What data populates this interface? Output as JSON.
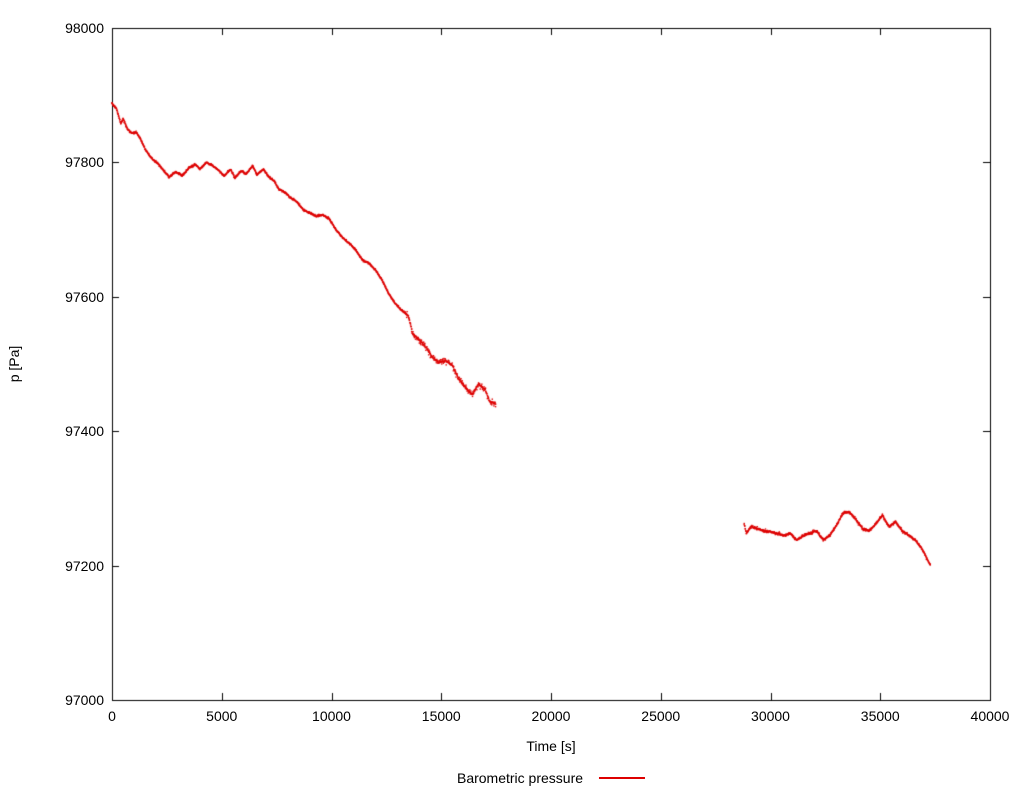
{
  "chart": {
    "background": "#ffffff",
    "axis_color": "#000000",
    "series_color": "#dd0000"
  },
  "chart_data": {
    "type": "scatter",
    "title": "",
    "xlabel": "Time [s]",
    "ylabel": "p [Pa]",
    "xlim": [
      0,
      40000
    ],
    "ylim": [
      97000,
      98000
    ],
    "xticks": [
      0,
      5000,
      10000,
      15000,
      20000,
      25000,
      30000,
      35000,
      40000
    ],
    "yticks": [
      97000,
      97200,
      97400,
      97600,
      97800,
      98000
    ],
    "grid": false,
    "legend_position": "bottom-center",
    "series": [
      {
        "name": "Barometric pressure",
        "color": "#dd0000",
        "segments": [
          [
            [
              0,
              97888
            ],
            [
              200,
              97880
            ],
            [
              400,
              97858
            ],
            [
              500,
              97865
            ],
            [
              700,
              97850
            ],
            [
              900,
              97843
            ],
            [
              1100,
              97845
            ],
            [
              1300,
              97835
            ],
            [
              1500,
              97820
            ],
            [
              1800,
              97806
            ],
            [
              2100,
              97798
            ],
            [
              2400,
              97786
            ],
            [
              2600,
              97778
            ],
            [
              2900,
              97786
            ],
            [
              3200,
              97780
            ],
            [
              3500,
              97792
            ],
            [
              3800,
              97797
            ],
            [
              4000,
              97790
            ],
            [
              4300,
              97800
            ],
            [
              4600,
              97795
            ],
            [
              4900,
              97787
            ],
            [
              5100,
              97780
            ],
            [
              5400,
              97790
            ],
            [
              5600,
              97777
            ],
            [
              5900,
              97788
            ],
            [
              6100,
              97782
            ],
            [
              6400,
              97795
            ],
            [
              6600,
              97782
            ],
            [
              6900,
              97790
            ],
            [
              7100,
              97780
            ],
            [
              7400,
              97772
            ],
            [
              7600,
              97760
            ],
            [
              7900,
              97755
            ],
            [
              8100,
              97748
            ],
            [
              8400,
              97742
            ],
            [
              8700,
              97730
            ],
            [
              9000,
              97725
            ],
            [
              9300,
              97720
            ],
            [
              9600,
              97722
            ],
            [
              9900,
              97716
            ],
            [
              10200,
              97700
            ],
            [
              10500,
              97688
            ],
            [
              10800,
              97680
            ],
            [
              11100,
              97670
            ],
            [
              11400,
              97655
            ],
            [
              11700,
              97650
            ],
            [
              12000,
              97640
            ],
            [
              12300,
              97625
            ],
            [
              12600,
              97605
            ],
            [
              12900,
              97590
            ],
            [
              13200,
              97580
            ],
            [
              13500,
              97572
            ],
            [
              13700,
              97545
            ],
            [
              14000,
              97535
            ],
            [
              14300,
              97525
            ],
            [
              14600,
              97510
            ],
            [
              14900,
              97502
            ],
            [
              15200,
              97505
            ],
            [
              15500,
              97498
            ],
            [
              15800,
              97478
            ],
            [
              16100,
              97465
            ],
            [
              16400,
              97455
            ],
            [
              16700,
              97470
            ],
            [
              17000,
              97462
            ],
            [
              17200,
              97445
            ],
            [
              17500,
              97440
            ]
          ],
          [
            [
              28800,
              97262
            ],
            [
              28900,
              97248
            ],
            [
              29100,
              97258
            ],
            [
              29400,
              97255
            ],
            [
              29700,
              97252
            ],
            [
              30000,
              97250
            ],
            [
              30300,
              97248
            ],
            [
              30600,
              97245
            ],
            [
              30900,
              97248
            ],
            [
              31200,
              97238
            ],
            [
              31500,
              97245
            ],
            [
              31800,
              97248
            ],
            [
              32100,
              97252
            ],
            [
              32400,
              97238
            ],
            [
              32700,
              97245
            ],
            [
              33000,
              97260
            ],
            [
              33300,
              97278
            ],
            [
              33600,
              97280
            ],
            [
              33900,
              97268
            ],
            [
              34200,
              97255
            ],
            [
              34500,
              97252
            ],
            [
              34800,
              97262
            ],
            [
              35100,
              97275
            ],
            [
              35400,
              97258
            ],
            [
              35700,
              97265
            ],
            [
              36000,
              97252
            ],
            [
              36300,
              97245
            ],
            [
              36600,
              97238
            ],
            [
              36900,
              97225
            ],
            [
              37100,
              97212
            ],
            [
              37300,
              97200
            ]
          ]
        ]
      }
    ]
  }
}
